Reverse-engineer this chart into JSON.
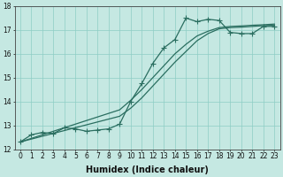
{
  "xlabel": "Humidex (Indice chaleur)",
  "x": [
    0,
    1,
    2,
    3,
    4,
    5,
    6,
    7,
    8,
    9,
    10,
    11,
    12,
    13,
    14,
    15,
    16,
    17,
    18,
    19,
    20,
    21,
    22,
    23
  ],
  "line_actual": [
    12.3,
    12.6,
    12.7,
    12.65,
    12.9,
    12.85,
    12.75,
    12.8,
    12.85,
    13.05,
    14.0,
    14.75,
    15.6,
    16.25,
    16.6,
    17.5,
    17.35,
    17.45,
    17.4,
    16.9,
    16.85,
    16.85,
    17.15,
    17.15
  ],
  "line_reg1": [
    12.3,
    12.42,
    12.54,
    12.66,
    12.78,
    12.9,
    13.02,
    13.14,
    13.26,
    13.38,
    13.72,
    14.15,
    14.65,
    15.15,
    15.65,
    16.1,
    16.55,
    16.85,
    17.05,
    17.1,
    17.12,
    17.15,
    17.18,
    17.2
  ],
  "line_reg2": [
    12.3,
    12.45,
    12.6,
    12.75,
    12.9,
    13.05,
    13.2,
    13.35,
    13.5,
    13.65,
    14.05,
    14.5,
    15.0,
    15.5,
    16.0,
    16.4,
    16.75,
    16.95,
    17.1,
    17.15,
    17.17,
    17.2,
    17.22,
    17.25
  ],
  "line_color": "#2a6e60",
  "bg_color": "#c5e8e2",
  "grid_color": "#8ecdc5",
  "ylim": [
    12,
    18
  ],
  "xlim_min": -0.5,
  "xlim_max": 23.5,
  "yticks": [
    12,
    13,
    14,
    15,
    16,
    17,
    18
  ],
  "xticks": [
    0,
    1,
    2,
    3,
    4,
    5,
    6,
    7,
    8,
    9,
    10,
    11,
    12,
    13,
    14,
    15,
    16,
    17,
    18,
    19,
    20,
    21,
    22,
    23
  ],
  "tick_fontsize": 5.5,
  "xlabel_fontsize": 7,
  "marker": "+",
  "markersize": 4,
  "linewidth": 0.9
}
